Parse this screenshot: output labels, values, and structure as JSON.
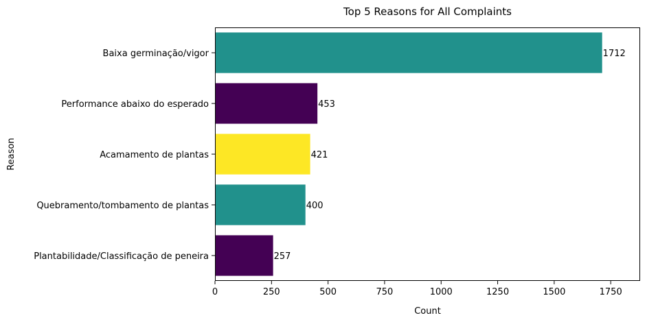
{
  "chart_data": {
    "type": "bar",
    "orientation": "horizontal",
    "title": "Top 5 Reasons for All Complaints",
    "xlabel": "Count",
    "ylabel": "Reason",
    "xlim": [
      0,
      1880
    ],
    "xticks": [
      0,
      250,
      500,
      750,
      1000,
      1250,
      1500,
      1750
    ],
    "xtick_labels": [
      "0",
      "250",
      "500",
      "750",
      "1000",
      "1250",
      "1500",
      "1750"
    ],
    "categories": [
      "Baixa germinação/vigor",
      "Performance abaixo do esperado",
      "Acamamento de plantas",
      "Quebramento/tombamento de plantas",
      "Plantabilidade/Classificação de peneira"
    ],
    "values": [
      1712,
      453,
      421,
      400,
      257
    ],
    "value_labels": [
      "1712",
      "453",
      "421",
      "400",
      "257"
    ],
    "bar_colors": [
      "#21918c",
      "#440154",
      "#fde725",
      "#21918c",
      "#440154"
    ],
    "grid": false,
    "legend": "none"
  }
}
